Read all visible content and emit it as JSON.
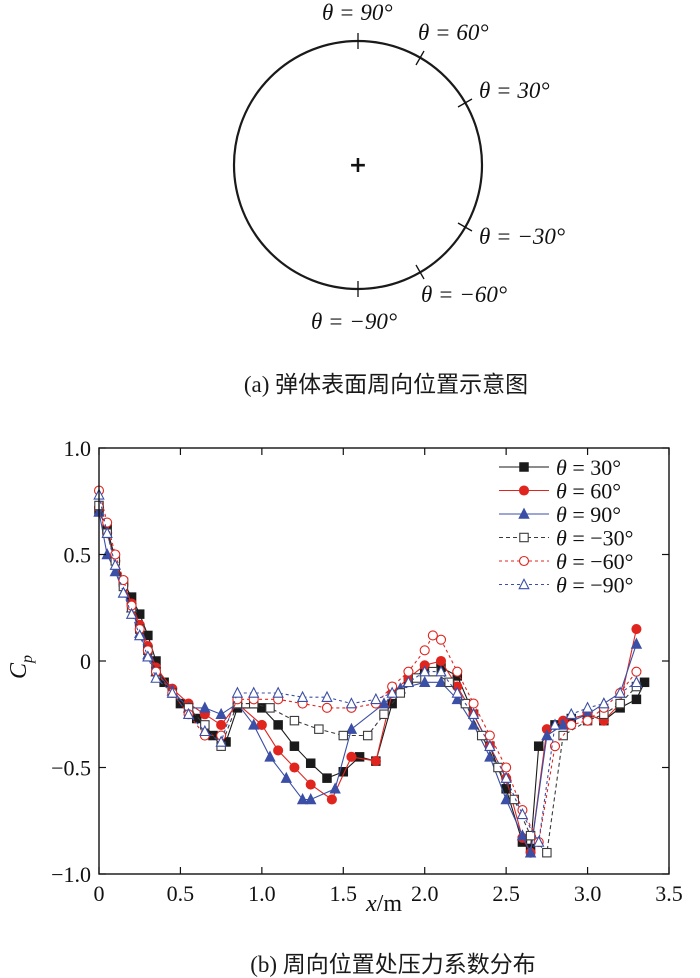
{
  "diagram": {
    "caption": "(a) 弹体表面周向位置示意图",
    "center_marker": "+",
    "angle_labels": [
      {
        "angle": 90,
        "text": "θ = 90°"
      },
      {
        "angle": 60,
        "text": "θ = 60°"
      },
      {
        "angle": 30,
        "text": "θ = 30°"
      },
      {
        "angle": -30,
        "text": "θ = −30°"
      },
      {
        "angle": -60,
        "text": "θ = −60°"
      },
      {
        "angle": -90,
        "text": "θ = −90°"
      }
    ]
  },
  "chart_data": {
    "type": "line",
    "caption": "(b) 周向位置处压力系数分布",
    "xlabel_main": "x",
    "xlabel_unit": "/m",
    "ylabel_main": "C",
    "ylabel_sub": "p",
    "xlim": [
      0,
      3.5
    ],
    "ylim": [
      -1.0,
      1.0
    ],
    "xticks": [
      0,
      0.5,
      1.0,
      1.5,
      2.0,
      2.5,
      3.0,
      3.5
    ],
    "xtick_labels": [
      "0",
      "0.5",
      "1.0",
      "1.5",
      "2.0",
      "2.5",
      "3.0",
      "3.5"
    ],
    "yticks": [
      1.0,
      0.5,
      0,
      -0.5,
      -1.0
    ],
    "ytick_labels": [
      "1.0",
      "0.5",
      "0",
      "−0.5",
      "−1.0"
    ],
    "legend_position": "top-right",
    "series": [
      {
        "name": "θ = 30°",
        "color": "#1a1a1a",
        "marker": "square-filled",
        "dash": "",
        "x": [
          0,
          0.05,
          0.1,
          0.15,
          0.2,
          0.25,
          0.3,
          0.35,
          0.4,
          0.5,
          0.6,
          0.7,
          0.78,
          0.85,
          1.0,
          1.1,
          1.2,
          1.3,
          1.4,
          1.5,
          1.6,
          1.7,
          1.8,
          1.9,
          2.0,
          2.1,
          2.2,
          2.3,
          2.4,
          2.5,
          2.6,
          2.65,
          2.7,
          2.8,
          2.9,
          3.0,
          3.1,
          3.2,
          3.3,
          3.35
        ],
        "y": [
          0.7,
          0.62,
          0.48,
          0.37,
          0.3,
          0.22,
          0.12,
          0.0,
          -0.1,
          -0.2,
          -0.27,
          -0.35,
          -0.38,
          -0.22,
          -0.22,
          -0.3,
          -0.4,
          -0.48,
          -0.55,
          -0.52,
          -0.45,
          -0.47,
          -0.2,
          -0.1,
          -0.04,
          -0.03,
          -0.07,
          -0.25,
          -0.4,
          -0.6,
          -0.85,
          -0.88,
          -0.4,
          -0.3,
          -0.27,
          -0.25,
          -0.28,
          -0.22,
          -0.18,
          -0.1
        ]
      },
      {
        "name": "θ = 60°",
        "color": "#e0251f",
        "marker": "circle-filled",
        "dash": "",
        "x": [
          0,
          0.05,
          0.1,
          0.15,
          0.2,
          0.25,
          0.3,
          0.35,
          0.45,
          0.55,
          0.65,
          0.75,
          0.85,
          1.0,
          1.1,
          1.2,
          1.3,
          1.43,
          1.55,
          1.7,
          1.8,
          1.9,
          2.0,
          2.1,
          2.2,
          2.3,
          2.4,
          2.5,
          2.6,
          2.65,
          2.75,
          2.85,
          3.0,
          3.1,
          3.2,
          3.3
        ],
        "y": [
          0.72,
          0.6,
          0.47,
          0.36,
          0.27,
          0.17,
          0.07,
          -0.03,
          -0.13,
          -0.2,
          -0.25,
          -0.3,
          -0.2,
          -0.3,
          -0.42,
          -0.5,
          -0.58,
          -0.65,
          -0.45,
          -0.47,
          -0.15,
          -0.08,
          -0.02,
          0.0,
          -0.12,
          -0.25,
          -0.4,
          -0.55,
          -0.83,
          -0.9,
          -0.32,
          -0.28,
          -0.25,
          -0.28,
          -0.2,
          0.15
        ]
      },
      {
        "name": "θ = 90°",
        "color": "#3b4fa6",
        "marker": "triangle-filled",
        "dash": "",
        "x": [
          0,
          0.05,
          0.1,
          0.15,
          0.2,
          0.25,
          0.3,
          0.35,
          0.45,
          0.55,
          0.65,
          0.75,
          0.85,
          0.95,
          1.05,
          1.15,
          1.25,
          1.3,
          1.45,
          1.55,
          1.75,
          1.85,
          2.0,
          2.1,
          2.2,
          2.3,
          2.4,
          2.5,
          2.6,
          2.65,
          2.75,
          2.85,
          3.0,
          3.1,
          3.2,
          3.3
        ],
        "y": [
          0.7,
          0.5,
          0.42,
          0.32,
          0.25,
          0.13,
          0.03,
          -0.05,
          -0.14,
          -0.22,
          -0.22,
          -0.25,
          -0.2,
          -0.3,
          -0.45,
          -0.55,
          -0.65,
          -0.65,
          -0.6,
          -0.32,
          -0.2,
          -0.13,
          -0.1,
          -0.1,
          -0.18,
          -0.3,
          -0.45,
          -0.65,
          -0.82,
          -0.9,
          -0.35,
          -0.3,
          -0.25,
          -0.2,
          -0.15,
          0.08
        ]
      },
      {
        "name": "θ = −30°",
        "color": "#3a3a3a",
        "marker": "square-open",
        "dash": "4,3",
        "x": [
          0,
          0.05,
          0.1,
          0.15,
          0.2,
          0.25,
          0.3,
          0.35,
          0.45,
          0.55,
          0.65,
          0.75,
          0.85,
          0.95,
          1.05,
          1.2,
          1.35,
          1.5,
          1.65,
          1.75,
          1.85,
          1.95,
          2.05,
          2.15,
          2.25,
          2.35,
          2.45,
          2.55,
          2.65,
          2.75,
          2.85,
          3.0,
          3.1,
          3.2,
          3.3
        ],
        "y": [
          0.73,
          0.6,
          0.47,
          0.35,
          0.25,
          0.15,
          0.05,
          -0.05,
          -0.15,
          -0.22,
          -0.3,
          -0.4,
          -0.2,
          -0.2,
          -0.22,
          -0.28,
          -0.32,
          -0.35,
          -0.35,
          -0.25,
          -0.15,
          -0.08,
          -0.05,
          -0.1,
          -0.2,
          -0.35,
          -0.5,
          -0.65,
          -0.82,
          -0.9,
          -0.35,
          -0.28,
          -0.25,
          -0.2,
          -0.12
        ]
      },
      {
        "name": "θ = −60°",
        "color": "#e0251f",
        "marker": "circle-open",
        "dash": "3,3",
        "x": [
          0,
          0.05,
          0.1,
          0.15,
          0.2,
          0.25,
          0.3,
          0.35,
          0.45,
          0.55,
          0.65,
          0.75,
          0.85,
          0.95,
          1.1,
          1.25,
          1.4,
          1.55,
          1.7,
          1.8,
          1.9,
          2.0,
          2.05,
          2.1,
          2.2,
          2.3,
          2.4,
          2.5,
          2.6,
          2.7,
          2.8,
          2.9,
          3.0,
          3.1,
          3.2,
          3.3
        ],
        "y": [
          0.8,
          0.65,
          0.5,
          0.38,
          0.26,
          0.15,
          0.05,
          -0.05,
          -0.15,
          -0.25,
          -0.35,
          -0.35,
          -0.18,
          -0.18,
          -0.18,
          -0.2,
          -0.22,
          -0.22,
          -0.2,
          -0.12,
          -0.05,
          0.05,
          0.12,
          0.1,
          -0.05,
          -0.2,
          -0.35,
          -0.5,
          -0.7,
          -0.85,
          -0.4,
          -0.3,
          -0.28,
          -0.22,
          -0.15,
          -0.05
        ]
      },
      {
        "name": "θ = −90°",
        "color": "#3b4fa6",
        "marker": "triangle-open",
        "dash": "3,3",
        "x": [
          0,
          0.05,
          0.1,
          0.15,
          0.2,
          0.25,
          0.3,
          0.35,
          0.45,
          0.55,
          0.65,
          0.75,
          0.85,
          0.95,
          1.1,
          1.25,
          1.4,
          1.55,
          1.7,
          1.8,
          1.9,
          2.0,
          2.1,
          2.2,
          2.3,
          2.4,
          2.5,
          2.6,
          2.7,
          2.8,
          2.9,
          3.0,
          3.1,
          3.2,
          3.3
        ],
        "y": [
          0.78,
          0.6,
          0.45,
          0.32,
          0.22,
          0.12,
          0.02,
          -0.08,
          -0.15,
          -0.25,
          -0.33,
          -0.38,
          -0.15,
          -0.15,
          -0.15,
          -0.17,
          -0.17,
          -0.2,
          -0.18,
          -0.15,
          -0.1,
          -0.05,
          -0.05,
          -0.15,
          -0.25,
          -0.4,
          -0.55,
          -0.72,
          -0.85,
          -0.3,
          -0.25,
          -0.22,
          -0.2,
          -0.15,
          -0.1
        ]
      }
    ]
  }
}
